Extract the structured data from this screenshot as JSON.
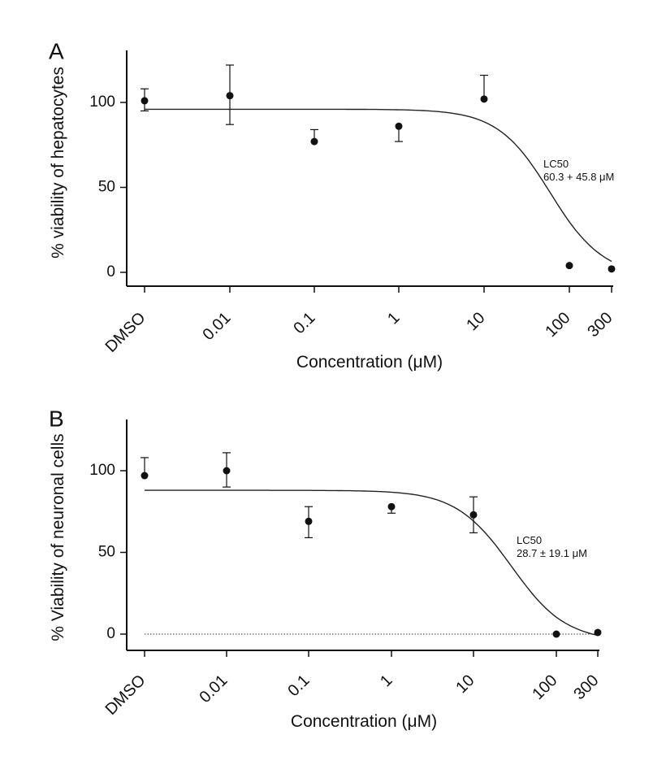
{
  "chart_data": [
    {
      "type": "scatter",
      "panel_label": "A",
      "xlabel": "Concentration (μM)",
      "ylabel": "% viability of hepatocytes",
      "categories": [
        "DMSO",
        "0.01",
        "0.1",
        "1",
        "10",
        "100",
        "300"
      ],
      "y_ticks": [
        0,
        50,
        100
      ],
      "ylim": [
        -10,
        130
      ],
      "x_scale": "log",
      "series": [
        {
          "values": [
            101,
            104,
            77,
            86,
            102,
            4,
            2
          ],
          "error_upper": [
            7,
            18,
            7,
            0,
            14,
            0,
            0
          ],
          "error_lower": [
            6,
            17,
            0,
            9,
            0,
            0,
            0
          ]
        }
      ],
      "fit_curve": {
        "top": 96,
        "bottom": -3,
        "lc50": 60.3,
        "hill": 1.4
      },
      "annotation": [
        "LC50",
        "60.3 + 45.8 μM"
      ],
      "zero_reference_line": false
    },
    {
      "type": "scatter",
      "panel_label": "B",
      "xlabel": "Concentration (μM)",
      "ylabel": "% Viability of neuronal cells",
      "categories": [
        "DMSO",
        "0.01",
        "0.1",
        "1",
        "10",
        "100",
        "300"
      ],
      "y_ticks": [
        0,
        50,
        100
      ],
      "ylim": [
        -10,
        130
      ],
      "x_scale": "log",
      "series": [
        {
          "values": [
            97,
            100,
            69,
            78,
            73,
            0,
            1
          ],
          "error_upper": [
            11,
            11,
            9,
            0,
            11,
            0,
            0
          ],
          "error_lower": [
            0,
            10,
            10,
            4,
            11,
            0,
            0
          ]
        }
      ],
      "fit_curve": {
        "top": 88,
        "bottom": -5,
        "lc50": 28.7,
        "hill": 1.3
      },
      "annotation": [
        "LC50",
        "28.7 ± 19.1 μM"
      ],
      "zero_reference_line": true
    }
  ]
}
